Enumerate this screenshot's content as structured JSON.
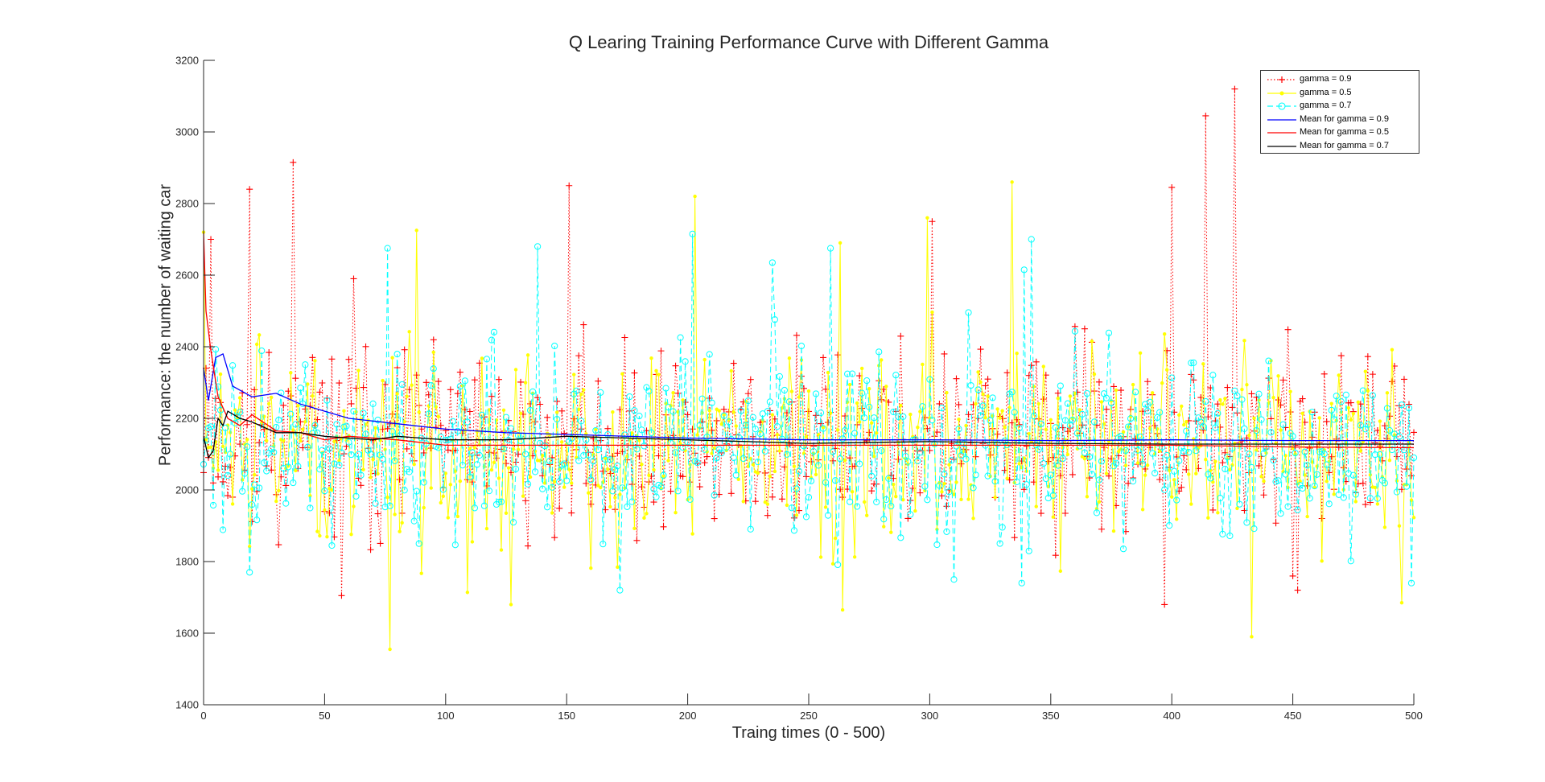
{
  "chart_data": {
    "type": "line",
    "title": "Q Learing Training Performance Curve with Different Gamma",
    "xlabel": "Traing times (0 - 500)",
    "ylabel": "Performance: the number of waiting car",
    "xlim": [
      0,
      500
    ],
    "ylim": [
      1400,
      3200
    ],
    "x_ticks": [
      0,
      50,
      100,
      150,
      200,
      250,
      300,
      350,
      400,
      450,
      500
    ],
    "y_ticks": [
      1400,
      1600,
      1800,
      2000,
      2200,
      2400,
      2600,
      2800,
      3000,
      3200
    ],
    "legend_position": "top-right",
    "series": [
      {
        "name": "gamma = 0.9",
        "color": "#ff0000",
        "style": "dotted",
        "marker": "plus",
        "note": "raw per-episode values, 500 points, fluctuating roughly 1700-2600",
        "highlights": [
          [
            1,
            2340
          ],
          [
            3,
            2700
          ],
          [
            19,
            2840
          ],
          [
            37,
            2915
          ],
          [
            62,
            2590
          ],
          [
            151,
            2850
          ],
          [
            301,
            2750
          ],
          [
            400,
            2845
          ],
          [
            414,
            3045
          ],
          [
            426,
            3120
          ],
          [
            397,
            1680
          ],
          [
            57,
            1705
          ],
          [
            452,
            1720
          ]
        ]
      },
      {
        "name": "gamma = 0.5",
        "color": "#ffff00",
        "style": "solid",
        "marker": "dot",
        "note": "raw per-episode values, 500 points, fluctuating roughly 1650-2550",
        "highlights": [
          [
            0,
            2720
          ],
          [
            88,
            2725
          ],
          [
            203,
            2820
          ],
          [
            263,
            2690
          ],
          [
            334,
            2860
          ],
          [
            299,
            2760
          ],
          [
            77,
            1555
          ],
          [
            433,
            1590
          ],
          [
            127,
            1680
          ],
          [
            264,
            1665
          ],
          [
            495,
            1685
          ]
        ]
      },
      {
        "name": "gamma = 0.7",
        "color": "#00ffff",
        "style": "dashed",
        "marker": "circle",
        "note": "raw per-episode values, 500 points, fluctuating roughly 1750-2550",
        "highlights": [
          [
            76,
            2675
          ],
          [
            138,
            2680
          ],
          [
            202,
            2715
          ],
          [
            235,
            2635
          ],
          [
            259,
            2675
          ],
          [
            342,
            2700
          ],
          [
            339,
            2615
          ],
          [
            19,
            1770
          ],
          [
            172,
            1720
          ],
          [
            338,
            1740
          ],
          [
            499,
            1740
          ]
        ]
      },
      {
        "name": "Mean for gamma = 0.9",
        "color": "#0000ff",
        "style": "solid",
        "x": [
          0,
          2,
          5,
          8,
          12,
          20,
          30,
          40,
          50,
          60,
          80,
          100,
          125,
          150,
          200,
          250,
          300,
          350,
          400,
          450,
          500
        ],
        "values": [
          2340,
          2250,
          2370,
          2380,
          2290,
          2260,
          2270,
          2240,
          2220,
          2200,
          2185,
          2170,
          2160,
          2155,
          2145,
          2140,
          2140,
          2138,
          2140,
          2138,
          2138
        ]
      },
      {
        "name": "Mean for gamma = 0.5",
        "color": "#ff0000",
        "style": "solid",
        "x": [
          0,
          1,
          3,
          6,
          10,
          15,
          20,
          30,
          40,
          50,
          60,
          80,
          100,
          150,
          200,
          250,
          300,
          350,
          400,
          450,
          500
        ],
        "values": [
          2720,
          2500,
          2390,
          2260,
          2200,
          2180,
          2210,
          2165,
          2160,
          2140,
          2150,
          2140,
          2125,
          2125,
          2125,
          2125,
          2125,
          2125,
          2125,
          2120,
          2118
        ]
      },
      {
        "name": "Mean for gamma = 0.7",
        "color": "#000000",
        "style": "solid",
        "x": [
          0,
          2,
          4,
          6,
          8,
          10,
          15,
          20,
          30,
          40,
          50,
          60,
          70,
          80,
          100,
          125,
          150,
          200,
          250,
          300,
          350,
          400,
          450,
          500
        ],
        "values": [
          2150,
          2090,
          2110,
          2200,
          2180,
          2220,
          2200,
          2190,
          2160,
          2160,
          2150,
          2145,
          2140,
          2150,
          2140,
          2140,
          2150,
          2140,
          2130,
          2135,
          2130,
          2128,
          2128,
          2128
        ]
      }
    ]
  }
}
